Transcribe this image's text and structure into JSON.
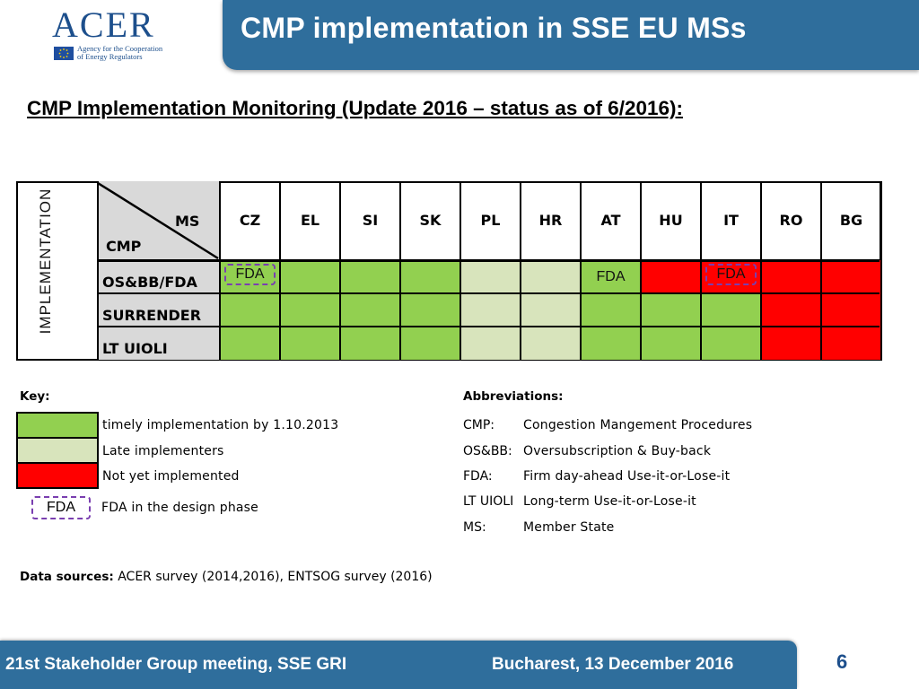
{
  "header": {
    "logo_text": "ACER",
    "logo_subtitle_line1": "Agency for the Cooperation",
    "logo_subtitle_line2": "of Energy Regulators",
    "title": "CMP implementation in SSE EU MSs"
  },
  "subtitle": "CMP Implementation Monitoring (Update 2016 – status as of 6/2016):",
  "table": {
    "vertical_label": "IMPLEMENTATION",
    "corner_ms": "MS",
    "corner_cmp": "CMP",
    "member_states": [
      "CZ",
      "EL",
      "SI",
      "SK",
      "PL",
      "HR",
      "AT",
      "HU",
      "IT",
      "RO",
      "BG"
    ],
    "rows": [
      {
        "label": "OS&BB/FDA",
        "status": [
          "timely",
          "timely",
          "timely",
          "timely",
          "late",
          "late",
          "timely",
          "not",
          "not",
          "not",
          "not"
        ],
        "notes": [
          "FDA-design",
          "",
          "",
          "",
          "",
          "",
          "FDA",
          "",
          "FDA-design",
          "",
          ""
        ]
      },
      {
        "label": "SURRENDER",
        "status": [
          "timely",
          "timely",
          "timely",
          "timely",
          "late",
          "late",
          "timely",
          "timely",
          "timely",
          "not",
          "not"
        ],
        "notes": [
          "",
          "",
          "",
          "",
          "",
          "",
          "",
          "",
          "",
          "",
          ""
        ]
      },
      {
        "label": "LT UIOLI",
        "status": [
          "timely",
          "timely",
          "timely",
          "timely",
          "late",
          "late",
          "timely",
          "timely",
          "timely",
          "not",
          "not"
        ],
        "notes": [
          "",
          "",
          "",
          "",
          "",
          "",
          "",
          "",
          "",
          "",
          ""
        ]
      }
    ],
    "note_text": "FDA"
  },
  "colors": {
    "timely": "#92d050",
    "late": "#d8e4bc",
    "not": "#ff0000",
    "header_blue": "#2f6e9c",
    "fda_border": "#7a3fb0"
  },
  "key": {
    "title": "Key:",
    "items": [
      {
        "status": "timely",
        "label": "timely implementation by 1.10.2013"
      },
      {
        "status": "late",
        "label": "Late implementers"
      },
      {
        "status": "not",
        "label": "Not yet implemented"
      }
    ],
    "fda_tag": "FDA",
    "fda_label": "FDA in the design phase"
  },
  "abbreviations": {
    "title": "Abbreviations:",
    "items": [
      {
        "abbr": "CMP:",
        "meaning": "Congestion Mangement Procedures"
      },
      {
        "abbr": "OS&BB:",
        "meaning": "Oversubscription & Buy-back"
      },
      {
        "abbr": "FDA:",
        "meaning": "Firm day-ahead Use-it-or-Lose-it"
      },
      {
        "abbr": "LT UIOLI",
        "meaning": "Long-term Use-it-or-Lose-it"
      },
      {
        "abbr": "MS:",
        "meaning": "Member State"
      }
    ]
  },
  "sources": {
    "label": "Data sources:",
    "text": " ACER survey (2014,2016), ENTSOG survey (2016)"
  },
  "footer": {
    "left": "21st Stakeholder Group meeting, SSE GRI",
    "right": "Bucharest, 13 December 2016",
    "page": "6"
  }
}
